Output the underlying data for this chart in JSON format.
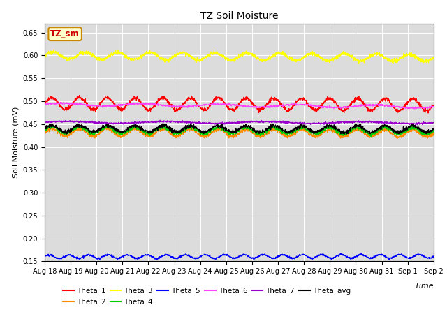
{
  "title": "TZ Soil Moisture",
  "xlabel": "Time",
  "ylabel": "Soil Moisture (mV)",
  "ylim": [
    0.15,
    0.67
  ],
  "xlim_days": [
    0,
    15.5
  ],
  "date_labels": [
    "Aug 18",
    "Aug 19",
    "Aug 20",
    "Aug 21",
    "Aug 22",
    "Aug 23",
    "Aug 24",
    "Aug 25",
    "Aug 26",
    "Aug 27",
    "Aug 28",
    "Aug 29",
    "Aug 30",
    "Aug 31",
    "Sep 1",
    "Sep 2"
  ],
  "yticks": [
    0.15,
    0.2,
    0.25,
    0.3,
    0.35,
    0.4,
    0.45,
    0.5,
    0.55,
    0.6,
    0.65
  ],
  "series": {
    "Theta_1": {
      "color": "#ff0000",
      "base": 0.495,
      "amp": 0.013,
      "freq_cycles": 14,
      "trend": -0.003,
      "noise": 0.002
    },
    "Theta_2": {
      "color": "#ff8c00",
      "base": 0.432,
      "amp": 0.008,
      "freq_cycles": 14,
      "trend": -0.002,
      "noise": 0.002
    },
    "Theta_3": {
      "color": "#ffff00",
      "base": 0.6,
      "amp": 0.008,
      "freq_cycles": 12,
      "trend": -0.005,
      "noise": 0.002
    },
    "Theta_4": {
      "color": "#00cc00",
      "base": 0.437,
      "amp": 0.007,
      "freq_cycles": 14,
      "trend": -0.002,
      "noise": 0.002
    },
    "Theta_5": {
      "color": "#0000ff",
      "base": 0.16,
      "amp": 0.004,
      "freq_cycles": 20,
      "trend": 0.001,
      "noise": 0.001
    },
    "Theta_6": {
      "color": "#ff44ff",
      "base": 0.493,
      "amp": 0.003,
      "freq_cycles": 5,
      "trend": -0.005,
      "noise": 0.001
    },
    "Theta_7": {
      "color": "#9900cc",
      "base": 0.454,
      "amp": 0.002,
      "freq_cycles": 4,
      "trend": -0.001,
      "noise": 0.001
    },
    "Theta_avg": {
      "color": "#000000",
      "base": 0.44,
      "amp": 0.007,
      "freq_cycles": 14,
      "trend": -0.001,
      "noise": 0.002
    }
  },
  "legend_row1": [
    "Theta_1",
    "Theta_2",
    "Theta_3",
    "Theta_4",
    "Theta_5",
    "Theta_6"
  ],
  "legend_row2": [
    "Theta_7",
    "Theta_avg"
  ],
  "legend_box_label": "TZ_sm",
  "legend_box_bg": "#ffffcc",
  "legend_box_edge": "#cc8800",
  "legend_text_color": "#cc0000",
  "plot_bg": "#dcdcdc",
  "figure_bg": "#ffffff",
  "grid_color": "#ffffff",
  "title_fontsize": 10,
  "axis_label_fontsize": 8,
  "tick_fontsize": 7
}
